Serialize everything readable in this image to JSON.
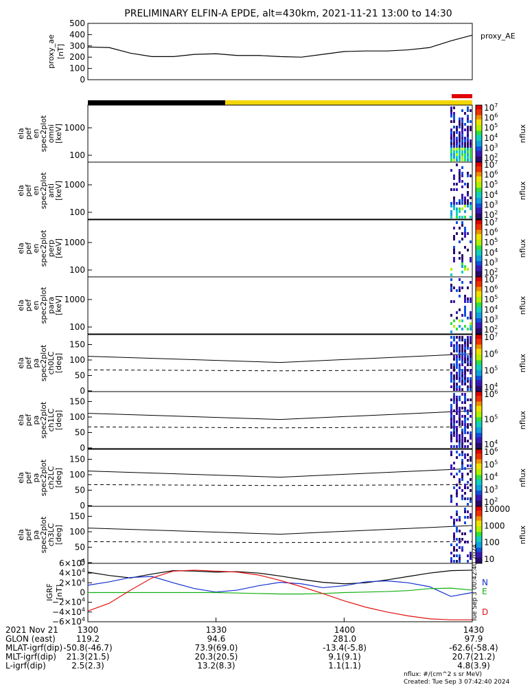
{
  "title": "PRELIMINARY ELFIN-A EPDE, alt=430km, 2021-11-21 13:00 to 14:30",
  "colors": {
    "sunlit_bar_dark": "#000000",
    "sunlit_bar_light": "#f2d600",
    "science_bar": "#e00000",
    "igrf_black": "#000000",
    "igrf_blue": "#1030d0",
    "igrf_green": "#10b010",
    "igrf_red": "#e01010"
  },
  "chart_data": [
    {
      "type": "line",
      "name": "proxy_ae",
      "title": "",
      "ylabel": "proxy_ae\n[nT]",
      "side_label": "proxy_AE",
      "ylim": [
        0,
        500
      ],
      "yticks": [
        0,
        100,
        200,
        300,
        400,
        500
      ],
      "x_minutes": [
        0,
        5,
        10,
        15,
        20,
        25,
        30,
        35,
        40,
        45,
        50,
        55,
        60,
        65,
        70,
        75,
        80,
        85,
        90
      ],
      "values": [
        290,
        285,
        235,
        205,
        205,
        225,
        230,
        215,
        215,
        205,
        200,
        225,
        250,
        255,
        255,
        265,
        285,
        345,
        395
      ]
    },
    {
      "type": "heatmap",
      "panels": [
        {
          "ylabel": "ela\npef\nen\nspec2plot\nomni\n[keV]",
          "yticks": [
            "100",
            "1000"
          ],
          "cbar_ticks": [
            "10^2",
            "10^3",
            "10^4",
            "10^5",
            "10^6",
            "10^7"
          ],
          "cbar_label": "nflux"
        },
        {
          "ylabel": "ela\npef\nen\nspec2plot\nanti\n[keV]",
          "yticks": [
            "100",
            "1000"
          ],
          "cbar_ticks": [
            "10^2",
            "10^3",
            "10^4",
            "10^5",
            "10^6",
            "10^7"
          ],
          "cbar_label": "nflux"
        },
        {
          "ylabel": "ela\npef\nen\nspec2plot\nperp\n[keV]",
          "yticks": [
            "100",
            "1000"
          ],
          "cbar_ticks": [
            "10^2",
            "10^3",
            "10^4",
            "10^5",
            "10^6",
            "10^7"
          ],
          "cbar_label": "nflux"
        },
        {
          "ylabel": "ela\npef\nen\nspec2plot\npara\n[keV]",
          "yticks": [
            "100",
            "1000"
          ],
          "cbar_ticks": [
            "10^2",
            "10^3",
            "10^4",
            "10^5",
            "10^6",
            "10^7"
          ],
          "cbar_label": "nflux"
        }
      ]
    },
    {
      "type": "heatmap",
      "panels": [
        {
          "ylabel": "ela\npef\npa\nspec2plot\nch0LC\n[deg]",
          "yticks": [
            "0",
            "50",
            "100",
            "150"
          ],
          "cbar_ticks": [
            "10^4",
            "10^5",
            "10^6",
            "10^7"
          ],
          "cbar_label": "nflux"
        },
        {
          "ylabel": "ela\npef\npa\nspec2plot\nch1LC\n[deg]",
          "yticks": [
            "0",
            "50",
            "100",
            "150"
          ],
          "cbar_ticks": [
            "10^4",
            "10^5",
            "10^6"
          ],
          "cbar_label": "nflux"
        },
        {
          "ylabel": "ela\npef\npa\nspec2plot\nch2LC\n[deg]",
          "yticks": [
            "0",
            "50",
            "100",
            "150"
          ],
          "cbar_ticks": [
            "10^2",
            "10^3",
            "10^4",
            "10^5",
            "10^6"
          ],
          "cbar_label": "nflux"
        },
        {
          "ylabel": "ela\npef\npa\nspec2plot\nch3LC\n[deg]",
          "yticks": [
            "0",
            "50",
            "100",
            "150"
          ],
          "cbar_ticks": [
            "10",
            "100",
            "1000",
            "10000"
          ],
          "cbar_label": "nflux"
        }
      ],
      "loss_cone_line_deg": {
        "x_minutes": [
          0,
          45,
          90
        ],
        "values": [
          112,
          92,
          120
        ]
      },
      "antiloss_cone_line_deg": {
        "x_minutes": [
          0,
          45,
          90
        ],
        "values": [
          68,
          65,
          68
        ]
      }
    },
    {
      "type": "line",
      "name": "IGRF",
      "ylabel": "IGRF\n[nT]",
      "ylim": [
        -60000,
        60000
      ],
      "yticks": [
        "−6×10^4",
        "−4×10^4",
        "−2×10^4",
        "0",
        "2×10^4",
        "4×10^4",
        "6×10^4"
      ],
      "x_minutes": [
        0,
        5,
        10,
        15,
        20,
        25,
        30,
        35,
        40,
        45,
        50,
        55,
        60,
        65,
        70,
        75,
        80,
        85,
        90
      ],
      "series": [
        {
          "name": "",
          "color": "#000000",
          "values": [
            42000,
            35000,
            30000,
            38000,
            45000,
            44000,
            42000,
            43000,
            40000,
            34000,
            27000,
            21000,
            18000,
            20000,
            26000,
            33000,
            40000,
            45000,
            46000
          ]
        },
        {
          "name": "N",
          "color": "#1030d0",
          "values": [
            15000,
            22000,
            31000,
            33000,
            20000,
            8000,
            1000,
            5000,
            14000,
            21000,
            18000,
            10000,
            14000,
            22000,
            24000,
            20000,
            12000,
            -8000,
            0
          ]
        },
        {
          "name": "E",
          "color": "#10b010",
          "values": [
            0,
            0,
            0,
            0,
            0,
            0,
            0,
            -1000,
            -2000,
            -3000,
            -3000,
            -2000,
            0,
            1000,
            2000,
            4000,
            8000,
            9000,
            5000
          ]
        },
        {
          "name": "D",
          "color": "#e01010",
          "values": [
            -38000,
            -22000,
            5000,
            30000,
            44000,
            46000,
            44000,
            42000,
            36000,
            25000,
            12000,
            -2000,
            -17000,
            -30000,
            -40000,
            -48000,
            -54000,
            -56000,
            -56000
          ]
        }
      ],
      "right_annotation": "Tue Sep  3 00:42:40 2024"
    }
  ],
  "x_axis": {
    "tick_minutes": [
      0,
      30,
      60,
      90
    ],
    "tick_labels": [
      "1300",
      "1330",
      "1400",
      "1430"
    ]
  },
  "footer": {
    "rows": [
      {
        "label": "2021 Nov 21",
        "values": [
          "1300",
          "1330",
          "1400",
          "1430"
        ]
      },
      {
        "label": "GLON (east)",
        "values": [
          "119.2",
          "94.6",
          "281.0",
          "97.9"
        ]
      },
      {
        "label": "MLAT-igrf(dip)",
        "values": [
          "-50.8(-46.7)",
          "73.9(69.0)",
          "-13.4(-5.8)",
          "-62.6(-58.4)"
        ]
      },
      {
        "label": "MLT-igrf(dip)",
        "values": [
          "21.3(21.5)",
          "20.3(20.5)",
          "9.1(9.1)",
          "20.7(21.2)"
        ]
      },
      {
        "label": "L-igrf(dip)",
        "values": [
          "2.5(2.3)",
          "13.2(8.3)",
          "1.1(1.1)",
          "4.8(3.9)"
        ]
      }
    ],
    "units_note": "nflux: #/(cm^2 s sr MeV)",
    "created_note": "Created: Tue Sep  3 07:42:40 2024"
  }
}
